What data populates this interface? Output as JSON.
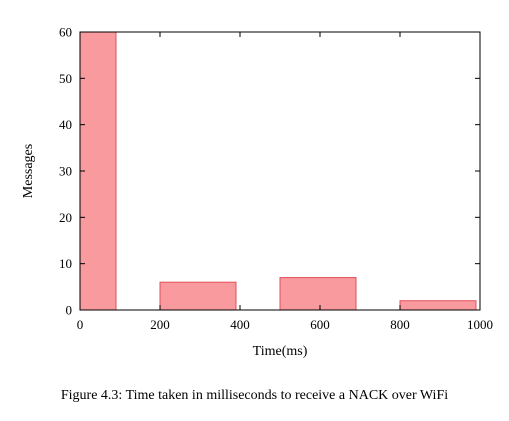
{
  "chart_data": {
    "type": "bar",
    "bins": [
      [
        0,
        90
      ],
      [
        200,
        390
      ],
      [
        500,
        690
      ],
      [
        800,
        990
      ]
    ],
    "values": [
      60,
      6,
      7,
      2
    ],
    "xlabel": "Time(ms)",
    "ylabel": "Messages",
    "xlim": [
      0,
      1000
    ],
    "ylim": [
      0,
      60
    ],
    "xticks": [
      "0",
      "200",
      "400",
      "600",
      "800",
      "1000"
    ],
    "yticks": [
      "0",
      "10",
      "20",
      "30",
      "40",
      "50",
      "60"
    ],
    "grid": false,
    "colors": {
      "bar_fill": "#f99a9e",
      "bar_stroke": "#e0505a",
      "axis": "#000000"
    }
  },
  "caption": "Figure 4.3: Time taken in milliseconds to receive a NACK over WiFi"
}
